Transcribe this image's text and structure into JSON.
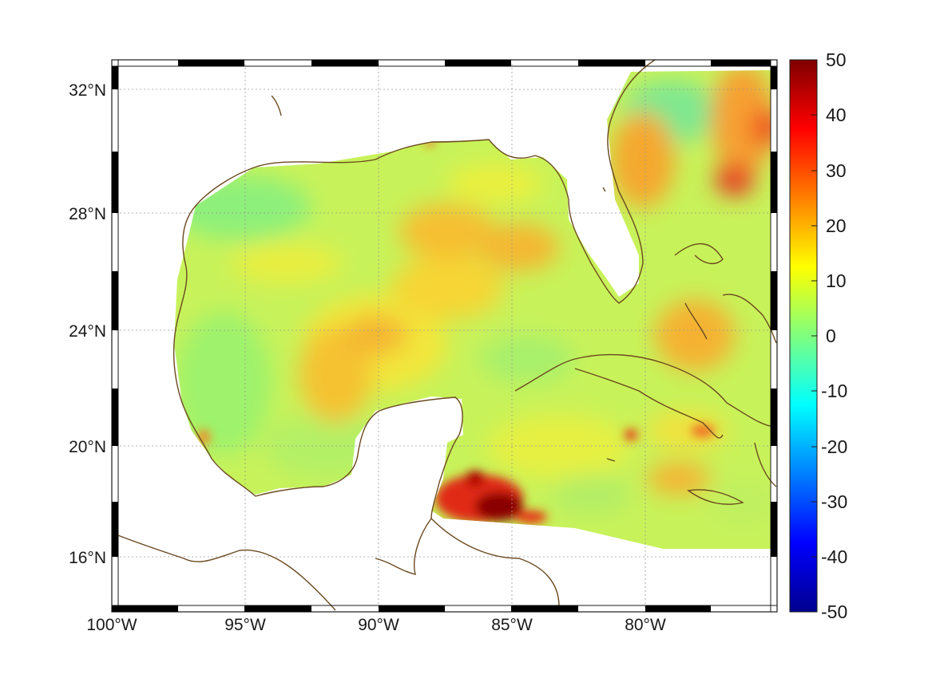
{
  "map": {
    "lon_range": [
      -100,
      -75
    ],
    "lat_range": [
      14.3,
      33
    ],
    "projection": "mercator",
    "grid": true,
    "frame": "black-white-checkered",
    "coastline_color": "#6b4a1f",
    "lon_ticks": [
      {
        "value": -100,
        "label": "100°W"
      },
      {
        "value": -95,
        "label": "95°W"
      },
      {
        "value": -90,
        "label": "90°W"
      },
      {
        "value": -85,
        "label": "85°W"
      },
      {
        "value": -80,
        "label": "80°W"
      }
    ],
    "lat_ticks": [
      {
        "value": 16,
        "label": "16°N"
      },
      {
        "value": 20,
        "label": "20°N"
      },
      {
        "value": 24,
        "label": "24°N"
      },
      {
        "value": 28,
        "label": "28°N"
      },
      {
        "value": 32,
        "label": "32°N"
      }
    ],
    "field_range_label": "values mostly between 0 and 20, extremes up to 50 near 17.5°N 85.5°W"
  },
  "colorbar": {
    "colormap": "jet",
    "min": -50,
    "max": 50,
    "ticks": [
      "50",
      "40",
      "30",
      "20",
      "10",
      "0",
      "-10",
      "-20",
      "-30",
      "-40",
      "-50"
    ]
  }
}
